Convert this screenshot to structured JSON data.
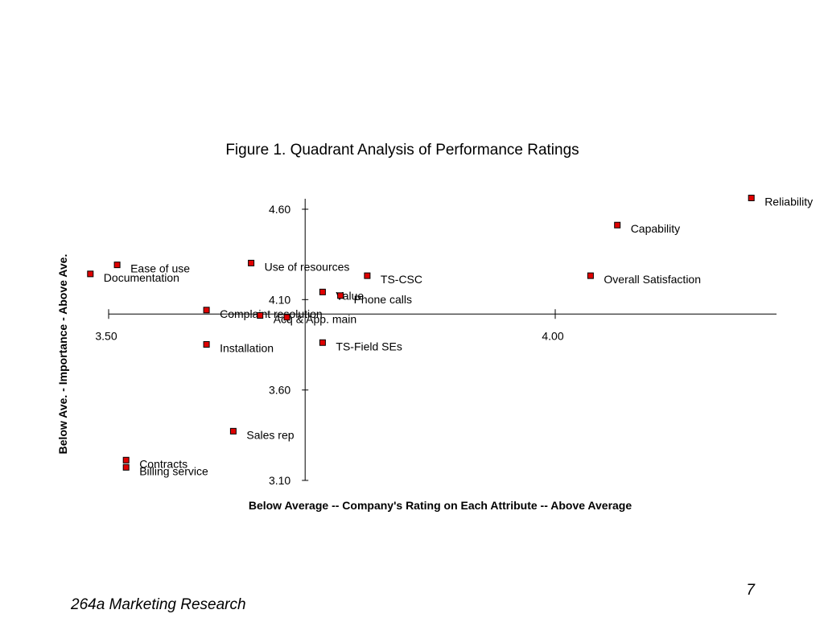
{
  "slide": {
    "footer": "264a Marketing Research",
    "page_number": "7"
  },
  "chart_data": {
    "type": "scatter",
    "title": "Figure 1.  Quadrant Analysis of Performance Ratings",
    "xlabel": "Below Average -- Company's Rating on Each Attribute -- Above Average",
    "ylabel": "Below Ave. - Importance - Above Ave.",
    "xlim": [
      3.5,
      4.25
    ],
    "ylim": [
      3.1,
      4.6
    ],
    "x_ticks": [
      3.5,
      4.0
    ],
    "x_tick_labels": [
      "3.50",
      "4.00"
    ],
    "y_ticks": [
      4.6,
      4.1,
      3.6,
      3.1
    ],
    "y_tick_labels": [
      "4.60",
      "4.10",
      "3.60",
      "3.10"
    ],
    "x_axis_crosses_y_at": 4.02,
    "y_axis_crosses_x_at": 3.72,
    "marker_color": "#e00000",
    "grid": false,
    "points": [
      {
        "label": "Reliability",
        "x": 4.22,
        "y": 4.66
      },
      {
        "label": "Capability",
        "x": 4.07,
        "y": 4.51
      },
      {
        "label": "Overall Satisfaction",
        "x": 4.04,
        "y": 4.23
      },
      {
        "label": "Use of resources",
        "x": 3.66,
        "y": 4.3
      },
      {
        "label": "TS-CSC",
        "x": 3.79,
        "y": 4.23
      },
      {
        "label": "Ease of use",
        "x": 3.51,
        "y": 4.29
      },
      {
        "label": "Documentation",
        "x": 3.48,
        "y": 4.24
      },
      {
        "label": "Value",
        "x": 3.74,
        "y": 4.14
      },
      {
        "label": "Phone calls",
        "x": 3.76,
        "y": 4.12
      },
      {
        "label": "Complaint resolution",
        "x": 3.61,
        "y": 4.04
      },
      {
        "label": "Acq & App. main",
        "x": 3.67,
        "y": 4.01
      },
      {
        "label": "",
        "x": 3.7,
        "y": 4.0
      },
      {
        "label": "TS-Field SEs",
        "x": 3.74,
        "y": 3.86
      },
      {
        "label": "Installation",
        "x": 3.61,
        "y": 3.85
      },
      {
        "label": "Sales rep",
        "x": 3.64,
        "y": 3.37
      },
      {
        "label": "Contracts",
        "x": 3.52,
        "y": 3.21
      },
      {
        "label": "Billing service",
        "x": 3.52,
        "y": 3.17
      }
    ]
  }
}
